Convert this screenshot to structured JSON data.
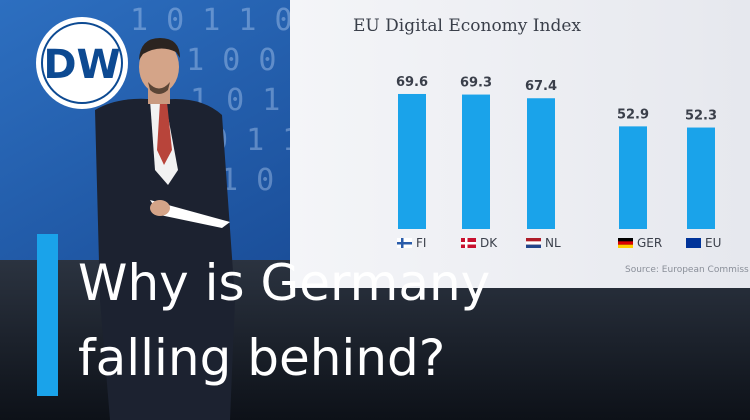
{
  "logo": "DW",
  "headline": [
    "Why is Germany",
    "falling behind?"
  ],
  "chart_data": {
    "type": "bar",
    "title": "EU Digital Economy Index",
    "categories": [
      "FI",
      "DK",
      "NL",
      "GER",
      "EU"
    ],
    "values": [
      69.6,
      69.3,
      67.4,
      52.9,
      52.3
    ],
    "color": "#1aa3ea",
    "source": "Source: European Commiss"
  }
}
